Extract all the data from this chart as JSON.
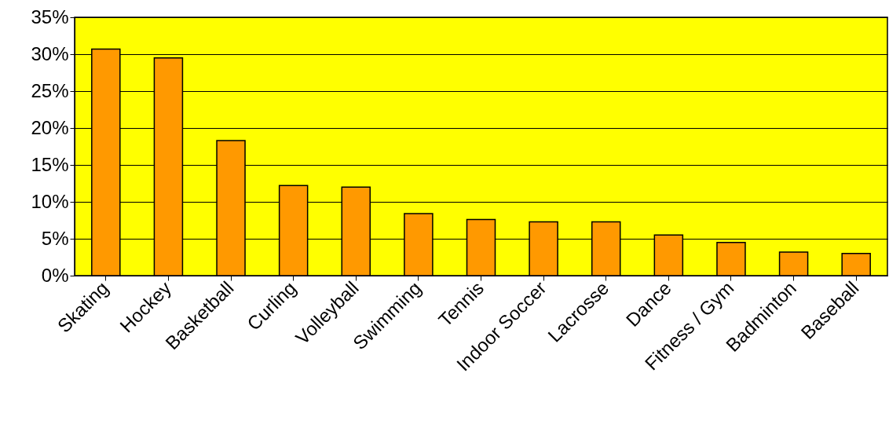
{
  "chart_data": {
    "type": "bar",
    "categories": [
      "Skating",
      "Hockey",
      "Basketball",
      "Curling",
      "Volleyball",
      "Swimming",
      "Tennis",
      "Indoor Soccer",
      "Lacrosse",
      "Dance",
      "Fitness / Gym",
      "Badminton",
      "Baseball"
    ],
    "values": [
      30.7,
      29.5,
      18.3,
      12.2,
      12.0,
      8.4,
      7.6,
      7.3,
      7.3,
      5.5,
      4.5,
      3.2,
      3.0
    ],
    "color": "#ff9900",
    "ylim": [
      0,
      35
    ],
    "yticks": [
      {
        "value": 0,
        "label": "0%"
      },
      {
        "value": 5,
        "label": "5%"
      },
      {
        "value": 10,
        "label": "10%"
      },
      {
        "value": 15,
        "label": "15%"
      },
      {
        "value": 20,
        "label": "20%"
      },
      {
        "value": 25,
        "label": "25%"
      },
      {
        "value": 30,
        "label": "30%"
      },
      {
        "value": 35,
        "label": "35%"
      }
    ],
    "grid": "y"
  }
}
